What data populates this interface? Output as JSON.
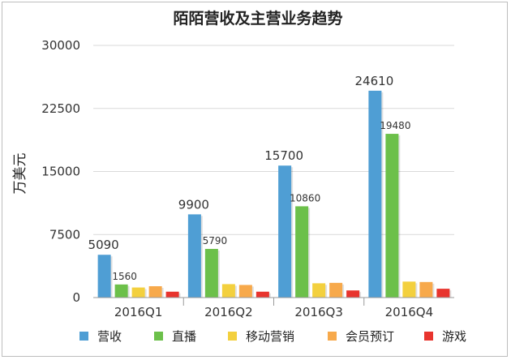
{
  "chart_data": {
    "type": "bar",
    "title": "陌陌营收及主营业务趋势",
    "xlabel": "",
    "ylabel": "万美元",
    "ylim": [
      0,
      30000
    ],
    "yticks": [
      0,
      7500,
      15000,
      22500,
      30000
    ],
    "categories": [
      "2016Q1",
      "2016Q2",
      "2016Q3",
      "2016Q4"
    ],
    "series": [
      {
        "name": "营收",
        "color": "#4f9ed4",
        "values": [
          5090,
          9900,
          15700,
          24610
        ],
        "labels": [
          "5090",
          "9900",
          "15700",
          "24610"
        ]
      },
      {
        "name": "直播",
        "color": "#6cc04a",
        "values": [
          1560,
          5790,
          10860,
          19480
        ],
        "labels": [
          "1560",
          "5790",
          "10860",
          "19480"
        ]
      },
      {
        "name": "移动营销",
        "color": "#f3d03e",
        "values": [
          1200,
          1600,
          1700,
          1900
        ],
        "labels": [
          "",
          "",
          "",
          ""
        ]
      },
      {
        "name": "会员预订",
        "color": "#f7a94b",
        "values": [
          1350,
          1500,
          1750,
          1850
        ],
        "labels": [
          "",
          "",
          "",
          ""
        ]
      },
      {
        "name": "游戏",
        "color": "#e8342e",
        "values": [
          700,
          700,
          850,
          1050
        ],
        "labels": [
          "",
          "",
          "",
          ""
        ]
      }
    ],
    "grid": true,
    "legend": "bottom"
  }
}
